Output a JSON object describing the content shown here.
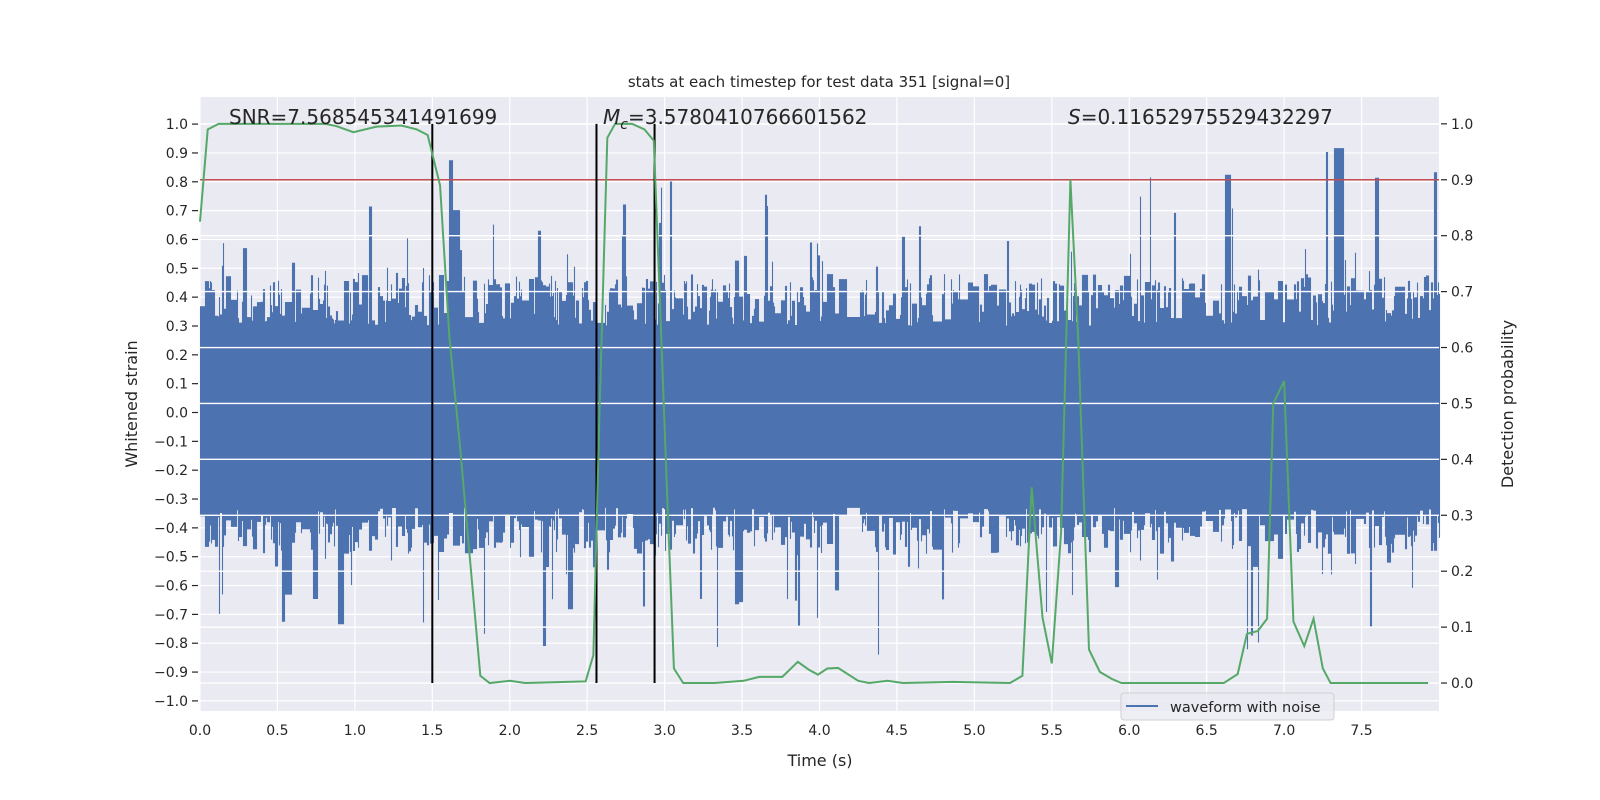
{
  "chart_data": {
    "type": "line",
    "title": "stats at each timestep for test data 351 [signal=0]",
    "xlabel": "Time (s)",
    "ylabel": "Whitened strain",
    "ylabel_right": "Detection probability",
    "xlim": [
      0,
      8.0
    ],
    "ylim": [
      -1.035,
      1.094
    ],
    "ylim_right": [
      -0.05,
      1.048
    ],
    "grid": true,
    "x_ticks": [
      "0.0",
      "0.5",
      "1.0",
      "1.5",
      "2.0",
      "2.5",
      "3.0",
      "3.5",
      "4.0",
      "4.5",
      "5.0",
      "5.5",
      "6.0",
      "6.5",
      "7.0",
      "7.5"
    ],
    "y_ticks": [
      "1.0",
      "0.9",
      "0.8",
      "0.7",
      "0.6",
      "0.5",
      "0.4",
      "0.3",
      "0.2",
      "0.1",
      "0.0",
      "−0.1",
      "−0.2",
      "−0.3",
      "−0.4",
      "−0.5",
      "−0.6",
      "−0.7",
      "−0.8",
      "−0.9",
      "−1.0"
    ],
    "y_ticks_right": [
      "0.0",
      "0.1",
      "0.2",
      "0.3",
      "0.4",
      "0.5",
      "0.6",
      "0.7",
      "0.8",
      "0.9",
      "1.0"
    ],
    "annotations": {
      "snr": "SNR=7.568545341491699",
      "mc_symbol": "M",
      "mc_sub": "c",
      "mc_value": "=3.5780410766601562",
      "s_symbol": "S",
      "s_value": "=0.11652975529432297"
    },
    "legend": {
      "entries": [
        "waveform with noise"
      ],
      "placement": "lower-right"
    },
    "threshold_line": {
      "axis": "right",
      "value": 0.9,
      "color": "#c44e52"
    },
    "vertical_lines": {
      "x": [
        1.5,
        2.56,
        2.935
      ],
      "from": 0.0,
      "to": 1.0,
      "axis": "right",
      "color": "#000000"
    },
    "series": [
      {
        "name": "waveform with noise",
        "axis": "left",
        "color": "#4c72b0",
        "kind": "noise",
        "core_amplitude": [
          -0.36,
          0.4
        ],
        "peak_max": 0.9,
        "peak_min": -0.8,
        "seed": 351
      },
      {
        "name": "detection probability",
        "axis": "right",
        "color": "#55a868",
        "x": [
          0,
          0.05,
          0.12,
          0.81,
          0.88,
          0.99,
          1.14,
          1.3,
          1.4,
          1.47,
          1.55,
          1.61,
          1.68,
          1.75,
          1.81,
          1.87,
          2.0,
          2.1,
          2.49,
          2.54,
          2.58,
          2.63,
          2.68,
          2.79,
          2.87,
          2.93,
          2.97,
          3.02,
          3.06,
          3.12,
          3.32,
          3.51,
          3.61,
          3.76,
          3.86,
          3.93,
          3.99,
          4.05,
          4.12,
          4.25,
          4.32,
          4.44,
          4.54,
          4.86,
          5.23,
          5.31,
          5.37,
          5.44,
          5.5,
          5.56,
          5.62,
          5.67,
          5.74,
          5.81,
          5.89,
          5.95,
          6.61,
          6.7,
          6.76,
          6.83,
          6.89,
          6.93,
          7.0,
          7.06,
          7.13,
          7.19,
          7.25,
          7.3,
          7.93
        ],
        "y": [
          0.825,
          0.99,
          1.0,
          1.0,
          0.996,
          0.985,
          0.995,
          0.997,
          0.99,
          0.98,
          0.89,
          0.62,
          0.42,
          0.2,
          0.013,
          0.0,
          0.004,
          0.0,
          0.003,
          0.05,
          0.49,
          0.975,
          1.0,
          1.0,
          0.99,
          0.97,
          0.68,
          0.31,
          0.026,
          0.0,
          0.0,
          0.004,
          0.011,
          0.011,
          0.038,
          0.024,
          0.015,
          0.026,
          0.027,
          0.004,
          0.0,
          0.004,
          0.0,
          0.002,
          0.0,
          0.013,
          0.35,
          0.117,
          0.035,
          0.27,
          0.9,
          0.62,
          0.06,
          0.02,
          0.007,
          0.0,
          0.0,
          0.016,
          0.088,
          0.093,
          0.115,
          0.5,
          0.54,
          0.11,
          0.066,
          0.115,
          0.026,
          0.0,
          0.0
        ]
      }
    ],
    "colors": {
      "background": "#eaeaf2",
      "grid": "#ffffff",
      "text": "#262626"
    }
  }
}
